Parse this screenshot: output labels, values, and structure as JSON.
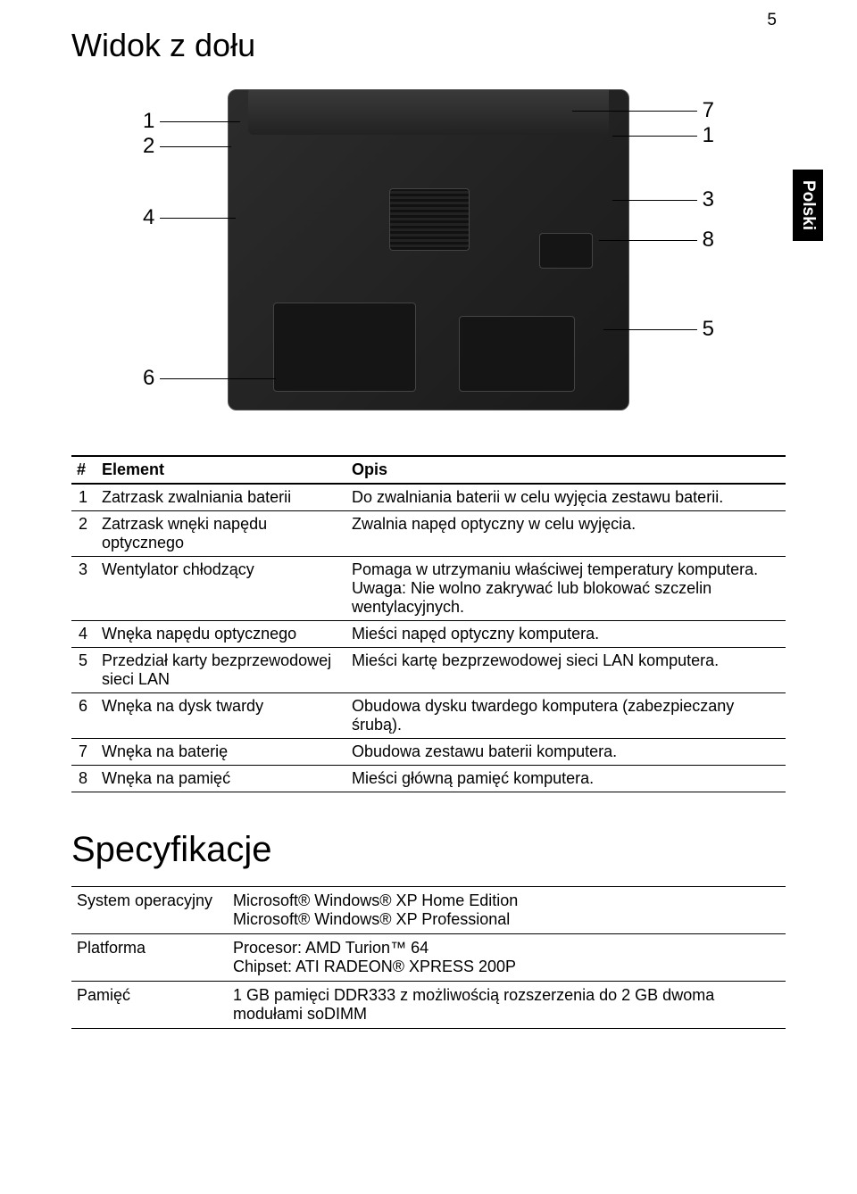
{
  "page_number": "5",
  "side_tab": "Polski",
  "title": "Widok z dołu",
  "diagram": {
    "left_labels": [
      "1",
      "2",
      "4",
      "6"
    ],
    "right_labels": [
      "7",
      "1",
      "3",
      "8",
      "5"
    ]
  },
  "table1": {
    "headers": [
      "#",
      "Element",
      "Opis"
    ],
    "rows": [
      {
        "n": "1",
        "el": "Zatrzask zwalniania baterii",
        "desc": "Do zwalniania baterii w celu wyjęcia zestawu baterii."
      },
      {
        "n": "2",
        "el": "Zatrzask wnęki napędu optycznego",
        "desc": "Zwalnia napęd optyczny w celu wyjęcia."
      },
      {
        "n": "3",
        "el": "Wentylator chłodzący",
        "desc": "Pomaga w utrzymaniu właściwej temperatury komputera.\nUwaga: Nie wolno zakrywać lub blokować szczelin wentylacyjnych."
      },
      {
        "n": "4",
        "el": "Wnęka napędu optycznego",
        "desc": "Mieści napęd optyczny komputera."
      },
      {
        "n": "5",
        "el": "Przedział karty bezprzewodowej sieci LAN",
        "desc": "Mieści kartę bezprzewodowej sieci LAN komputera."
      },
      {
        "n": "6",
        "el": "Wnęka na dysk twardy",
        "desc": "Obudowa dysku twardego komputera (zabezpieczany śrubą)."
      },
      {
        "n": "7",
        "el": "Wnęka na baterię",
        "desc": "Obudowa zestawu baterii komputera."
      },
      {
        "n": "8",
        "el": "Wnęka na pamięć",
        "desc": "Mieści główną pamięć komputera."
      }
    ]
  },
  "spec_title": "Specyfikacje",
  "spec_table": {
    "rows": [
      {
        "label": "System operacyjny",
        "value": "Microsoft® Windows® XP Home Edition\nMicrosoft® Windows® XP Professional"
      },
      {
        "label": "Platforma",
        "value": "Procesor: AMD Turion™ 64\nChipset: ATI RADEON® XPRESS 200P"
      },
      {
        "label": "Pamięć",
        "value": "1 GB pamięci DDR333 z możliwością rozszerzenia do 2 GB dwoma modułami soDIMM"
      }
    ]
  },
  "style": {
    "colors": {
      "text": "#000000",
      "bg": "#ffffff",
      "tab_bg": "#000000",
      "tab_fg": "#ffffff",
      "border": "#000000",
      "laptop_dark": "#1a1a1a",
      "laptop_light": "#2c2c2c"
    },
    "fonts": {
      "title_size_pt": 27,
      "spec_title_size_pt": 30,
      "body_size_pt": 13,
      "callout_size_pt": 18
    }
  }
}
